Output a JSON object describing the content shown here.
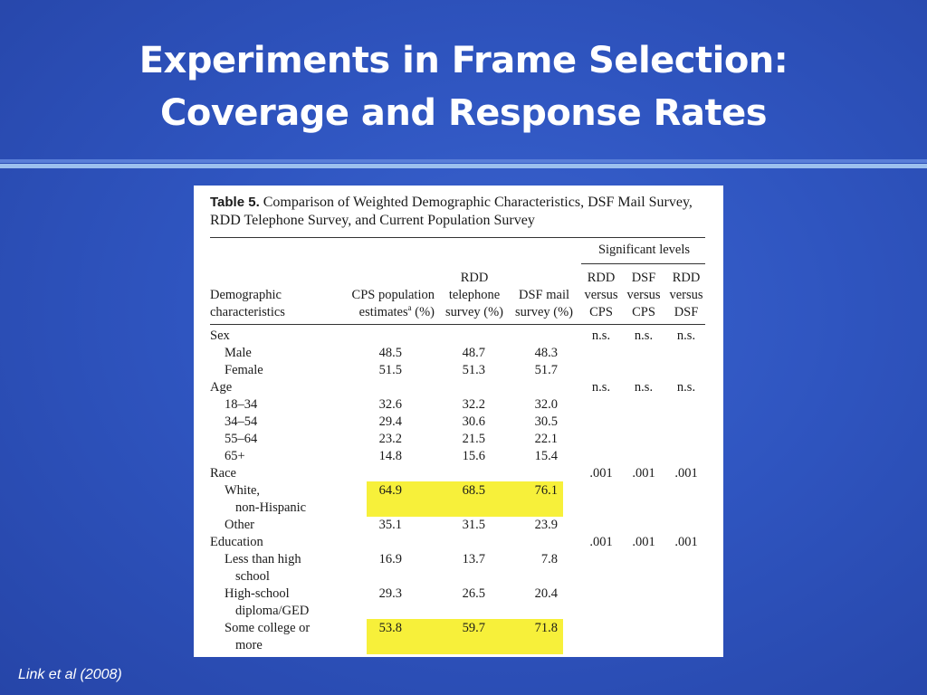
{
  "slide": {
    "title_line1": "Experiments in Frame Selection:",
    "title_line2": "Coverage and Response Rates",
    "credit": "Link et al (2008)"
  },
  "table": {
    "caption_label": "Table 5.",
    "caption_text": "Comparison of Weighted Demographic Characteristics, DSF Mail Survey, RDD Telephone Survey, and Current Population Survey",
    "header": {
      "significant_levels": "Significant levels",
      "demographic": [
        "Demographic",
        "characteristics"
      ],
      "cps": [
        "CPS population",
        "estimates",
        "a",
        " (%)"
      ],
      "rdd": [
        "RDD",
        "telephone",
        "survey (%)"
      ],
      "dsf": [
        "DSF mail",
        "survey (%)"
      ],
      "rdd_cps": [
        "RDD",
        "versus",
        "CPS"
      ],
      "dsf_cps": [
        "DSF",
        "versus",
        "CPS"
      ],
      "rdd_dsf": [
        "RDD",
        "versus",
        "DSF"
      ]
    },
    "rows": [
      {
        "label": [
          "Sex"
        ],
        "indent": false,
        "cps": "",
        "rdd": "",
        "dsf": "",
        "s1": "n.s.",
        "s2": "n.s.",
        "s3": "n.s.",
        "highlight": false
      },
      {
        "label": [
          "Male"
        ],
        "indent": true,
        "cps": "48.5",
        "rdd": "48.7",
        "dsf": "48.3",
        "s1": "",
        "s2": "",
        "s3": "",
        "highlight": false
      },
      {
        "label": [
          "Female"
        ],
        "indent": true,
        "cps": "51.5",
        "rdd": "51.3",
        "dsf": "51.7",
        "s1": "",
        "s2": "",
        "s3": "",
        "highlight": false
      },
      {
        "label": [
          "Age"
        ],
        "indent": false,
        "cps": "",
        "rdd": "",
        "dsf": "",
        "s1": "n.s.",
        "s2": "n.s.",
        "s3": "n.s.",
        "highlight": false
      },
      {
        "label": [
          "18–34"
        ],
        "indent": true,
        "cps": "32.6",
        "rdd": "32.2",
        "dsf": "32.0",
        "s1": "",
        "s2": "",
        "s3": "",
        "highlight": false
      },
      {
        "label": [
          "34–54"
        ],
        "indent": true,
        "cps": "29.4",
        "rdd": "30.6",
        "dsf": "30.5",
        "s1": "",
        "s2": "",
        "s3": "",
        "highlight": false
      },
      {
        "label": [
          "55–64"
        ],
        "indent": true,
        "cps": "23.2",
        "rdd": "21.5",
        "dsf": "22.1",
        "s1": "",
        "s2": "",
        "s3": "",
        "highlight": false
      },
      {
        "label": [
          "65+"
        ],
        "indent": true,
        "cps": "14.8",
        "rdd": "15.6",
        "dsf": "15.4",
        "s1": "",
        "s2": "",
        "s3": "",
        "highlight": false
      },
      {
        "label": [
          "Race"
        ],
        "indent": false,
        "cps": "",
        "rdd": "",
        "dsf": "",
        "s1": ".001",
        "s2": ".001",
        "s3": ".001",
        "highlight": false
      },
      {
        "label": [
          "White,",
          "non-Hispanic"
        ],
        "indent": true,
        "cps": "64.9",
        "rdd": "68.5",
        "dsf": "76.1",
        "s1": "",
        "s2": "",
        "s3": "",
        "highlight": true
      },
      {
        "label": [
          "Other"
        ],
        "indent": true,
        "cps": "35.1",
        "rdd": "31.5",
        "dsf": "23.9",
        "s1": "",
        "s2": "",
        "s3": "",
        "highlight": false
      },
      {
        "label": [
          "Education"
        ],
        "indent": false,
        "cps": "",
        "rdd": "",
        "dsf": "",
        "s1": ".001",
        "s2": ".001",
        "s3": ".001",
        "highlight": false
      },
      {
        "label": [
          "Less than high",
          "school"
        ],
        "indent": true,
        "cps": "16.9",
        "rdd": "13.7",
        "dsf": "7.8",
        "s1": "",
        "s2": "",
        "s3": "",
        "highlight": false
      },
      {
        "label": [
          "High-school",
          "diploma/GED"
        ],
        "indent": true,
        "cps": "29.3",
        "rdd": "26.5",
        "dsf": "20.4",
        "s1": "",
        "s2": "",
        "s3": "",
        "highlight": false
      },
      {
        "label": [
          "Some college or",
          "more"
        ],
        "indent": true,
        "cps": "53.8",
        "rdd": "59.7",
        "dsf": "71.8",
        "s1": "",
        "s2": "",
        "s3": "",
        "highlight": true
      }
    ]
  },
  "colors": {
    "background": "#2f55c0",
    "highlight": "#f7f03a",
    "title_text": "#ffffff"
  }
}
